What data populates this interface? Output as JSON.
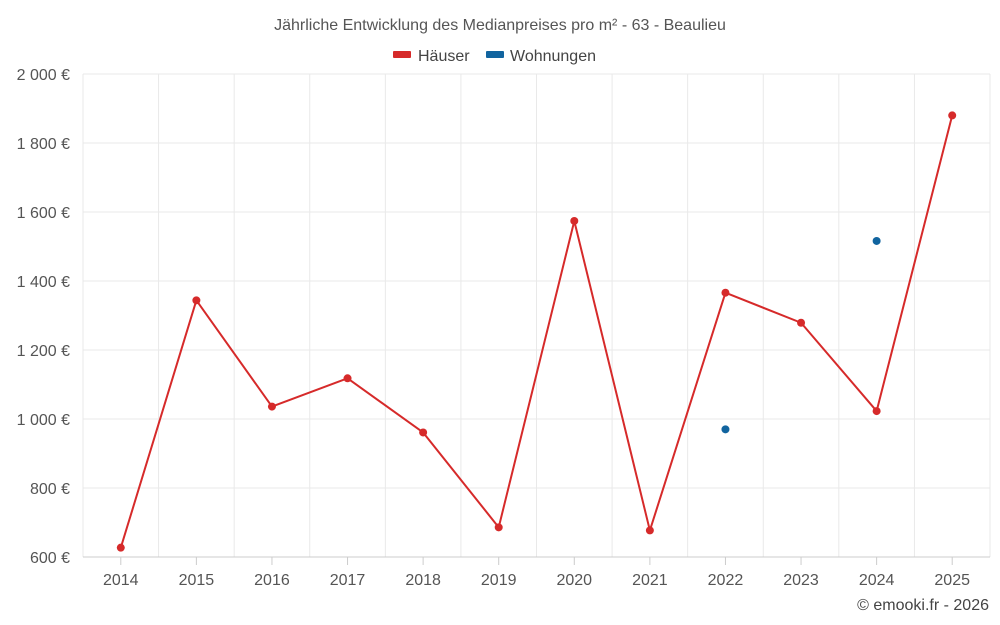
{
  "chart_data": {
    "type": "line",
    "title": "Jährliche Entwicklung des Medianpreises pro m² - 63 - Beaulieu",
    "categories": [
      "2014",
      "2015",
      "2016",
      "2017",
      "2018",
      "2019",
      "2020",
      "2021",
      "2022",
      "2023",
      "2024",
      "2025"
    ],
    "series": [
      {
        "name": "Häuser",
        "color": "#d62a2a",
        "values": [
          627,
          1344,
          1036,
          1118,
          961,
          686,
          1574,
          677,
          1366,
          1279,
          1023,
          1880
        ]
      },
      {
        "name": "Wohnungen",
        "color": "#11649f",
        "values": [
          null,
          null,
          null,
          null,
          null,
          null,
          null,
          null,
          970,
          null,
          1516,
          null
        ]
      }
    ],
    "yticks": [
      "600 €",
      "800 €",
      "1 000 €",
      "1 200 €",
      "1 400 €",
      "1 600 €",
      "1 800 €",
      "2 000 €"
    ],
    "ylim": [
      600,
      2000
    ],
    "xlabel": "",
    "ylabel": "",
    "legend_position": "top-center",
    "grid": true
  },
  "credit": "© emooki.fr - 2026"
}
